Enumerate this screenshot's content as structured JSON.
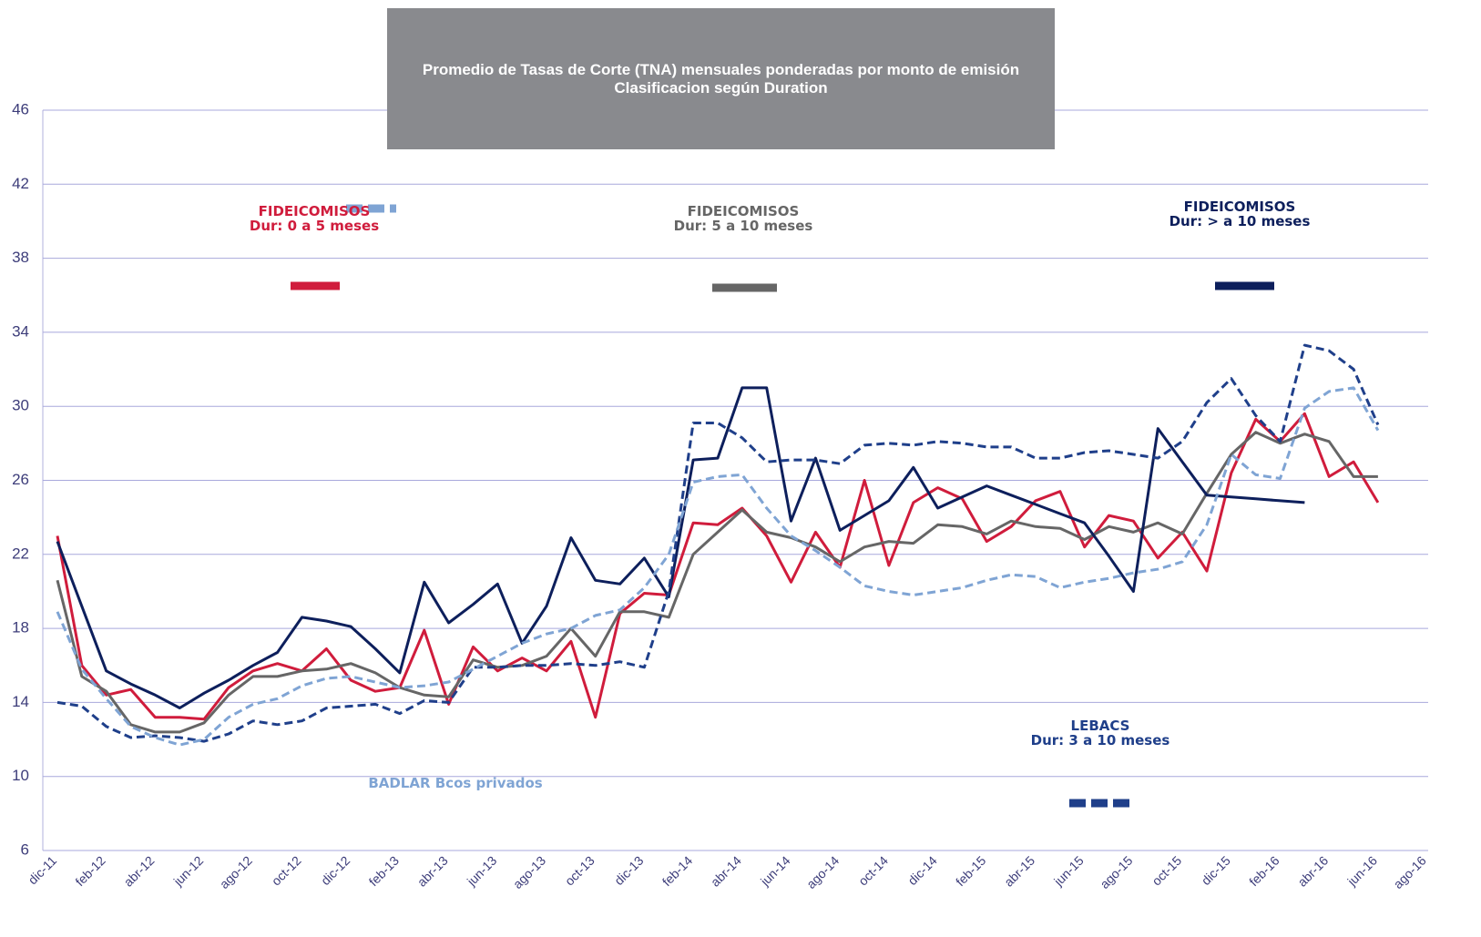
{
  "chart_data": {
    "type": "line",
    "title": "Promedio de Tasas de Corte (TNA) mensuales ponderadas por monto de emisión Clasificacion según Duration",
    "categories": [
      "dic-11",
      null,
      "feb-12",
      null,
      "abr-12",
      null,
      "jun-12",
      null,
      "ago-12",
      null,
      "oct-12",
      null,
      "dic-12",
      null,
      "feb-13",
      null,
      "abr-13",
      null,
      "jun-13",
      null,
      "ago-13",
      null,
      "oct-13",
      null,
      "dic-13",
      null,
      "feb-14",
      null,
      "abr-14",
      null,
      "jun-14",
      null,
      "ago-14",
      null,
      "oct-14",
      null,
      "dic-14",
      null,
      "feb-15",
      null,
      "abr-15",
      null,
      "jun-15",
      null,
      "ago-15",
      null,
      "oct-15",
      null,
      "dic-15",
      null,
      "feb-16",
      null,
      "abr-16",
      null,
      "jun-16",
      null,
      "ago-16"
    ],
    "ylim": [
      6,
      46
    ],
    "yticks": [
      6,
      10,
      14,
      18,
      22,
      26,
      30,
      34,
      38,
      42,
      46
    ],
    "grid": true,
    "series": [
      {
        "name": "FIDEICOMISOS\nDur: 0 a 5 meses",
        "color": "#d01c3c",
        "dashed": false,
        "values": [
          23.0,
          16.0,
          14.4,
          14.7,
          13.2,
          13.2,
          13.1,
          14.8,
          15.7,
          16.1,
          15.7,
          16.9,
          15.2,
          14.6,
          14.8,
          17.9,
          13.9,
          17.0,
          15.7,
          16.4,
          15.7,
          17.3,
          13.2,
          18.8,
          19.9,
          19.8,
          23.7,
          23.6,
          24.5,
          23.0,
          20.5,
          23.2,
          21.3,
          26.0,
          21.4,
          24.8,
          25.6,
          25.0,
          22.7,
          23.5,
          24.9,
          25.4,
          22.4,
          24.1,
          23.8,
          21.8,
          23.2,
          21.1,
          26.4,
          29.3,
          28.1,
          29.6,
          26.2,
          27.0,
          24.8,
          null,
          null
        ]
      },
      {
        "name": "FIDEICOMISOS\nDur: 5 a 10 meses",
        "color": "#666666",
        "dashed": false,
        "values": [
          20.6,
          15.4,
          14.6,
          12.8,
          12.4,
          12.4,
          12.9,
          14.4,
          15.4,
          15.4,
          15.7,
          15.8,
          16.1,
          15.6,
          14.8,
          14.4,
          14.3,
          16.3,
          15.9,
          16.0,
          16.5,
          18.0,
          16.5,
          18.9,
          18.9,
          18.6,
          22.0,
          23.2,
          24.4,
          23.2,
          22.9,
          22.4,
          21.6,
          22.4,
          22.7,
          22.6,
          23.6,
          23.5,
          23.1,
          23.8,
          23.5,
          23.4,
          22.8,
          23.5,
          23.2,
          23.7,
          23.1,
          25.3,
          27.4,
          28.6,
          28.0,
          28.5,
          28.1,
          26.2,
          26.2,
          null,
          null
        ]
      },
      {
        "name": "FIDEICOMISOS\nDur: > a 10 meses",
        "color": "#0d1f5c",
        "dashed": false,
        "values": [
          22.7,
          19.2,
          15.7,
          15.0,
          14.4,
          13.7,
          14.5,
          15.2,
          16.0,
          16.7,
          18.6,
          18.4,
          18.1,
          16.9,
          15.6,
          20.5,
          18.3,
          19.3,
          20.4,
          17.2,
          19.2,
          22.9,
          20.6,
          20.4,
          21.8,
          19.7,
          27.1,
          27.2,
          31.0,
          31.0,
          23.8,
          27.2,
          23.3,
          24.1,
          24.9,
          26.7,
          24.5,
          25.1,
          25.7,
          25.2,
          24.7,
          24.2,
          23.7,
          21.9,
          20.0,
          28.8,
          27.0,
          25.2,
          25.1,
          25.0,
          24.9,
          24.8,
          null,
          null,
          null,
          null,
          null
        ]
      },
      {
        "name": "LEBACS\nDur: 3 a 10 meses",
        "color": "#1f3f8a",
        "dashed": true,
        "values": [
          14.0,
          13.8,
          12.7,
          12.1,
          12.2,
          12.1,
          11.9,
          12.3,
          13.0,
          12.8,
          13.0,
          13.7,
          13.8,
          13.9,
          13.4,
          14.1,
          14.0,
          15.9,
          15.9,
          16.0,
          16.0,
          16.1,
          16.0,
          16.2,
          15.9,
          20.0,
          29.1,
          29.1,
          28.3,
          27.0,
          27.1,
          27.1,
          26.9,
          27.9,
          28.0,
          27.9,
          28.1,
          28.0,
          27.8,
          27.8,
          27.2,
          27.2,
          27.5,
          27.6,
          27.4,
          27.2,
          28.1,
          30.2,
          31.5,
          29.5,
          28.1,
          33.3,
          33.0,
          32.0,
          29.0,
          null,
          null
        ]
      },
      {
        "name": "BADLAR Bcos privados",
        "color": "#7fa4d4",
        "dashed": true,
        "values": [
          18.9,
          15.8,
          14.2,
          12.7,
          12.1,
          11.7,
          12.0,
          13.2,
          13.9,
          14.2,
          14.9,
          15.3,
          15.4,
          15.1,
          14.8,
          14.9,
          15.1,
          15.8,
          16.5,
          17.2,
          17.7,
          18.0,
          18.7,
          19.0,
          20.2,
          22.0,
          25.9,
          26.2,
          26.3,
          24.5,
          23.0,
          22.2,
          21.3,
          20.3,
          20.0,
          19.8,
          20.0,
          20.2,
          20.6,
          20.9,
          20.8,
          20.2,
          20.5,
          20.7,
          21.0,
          21.2,
          21.6,
          23.6,
          27.4,
          26.3,
          26.1,
          29.9,
          30.8,
          31.0,
          28.7,
          null,
          null
        ]
      }
    ]
  }
}
